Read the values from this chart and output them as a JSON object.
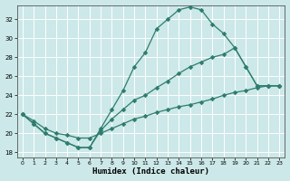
{
  "xlabel": "Humidex (Indice chaleur)",
  "bg_color": "#cce8e8",
  "grid_color": "#b0d8d8",
  "line_color": "#2e7d6e",
  "xlim": [
    -0.5,
    23.5
  ],
  "ylim": [
    17.5,
    33.5
  ],
  "xticks": [
    0,
    1,
    2,
    3,
    4,
    5,
    6,
    7,
    8,
    9,
    10,
    11,
    12,
    13,
    14,
    15,
    16,
    17,
    18,
    19,
    20,
    21,
    22,
    23
  ],
  "yticks": [
    18,
    20,
    22,
    24,
    26,
    28,
    30,
    32
  ],
  "line1_x": [
    0,
    1,
    2,
    3,
    4,
    5,
    6,
    7,
    8,
    9,
    10,
    11,
    12,
    13,
    14,
    15,
    16,
    17,
    18,
    19,
    20,
    21,
    22,
    23
  ],
  "line1_y": [
    22.0,
    21.0,
    20.0,
    19.5,
    19.0,
    18.5,
    18.5,
    20.5,
    22.5,
    24.5,
    27.0,
    28.5,
    31.0,
    32.0,
    33.0,
    33.3,
    33.0,
    31.5,
    30.5,
    29.0,
    27.0,
    25.0,
    25.0,
    25.0
  ],
  "line2_x": [
    0,
    1,
    2,
    3,
    4,
    5,
    6,
    7,
    8,
    9,
    10,
    11,
    12,
    13,
    14,
    15,
    16,
    17,
    18,
    19,
    20,
    21,
    22,
    23
  ],
  "line2_y": [
    22.0,
    21.0,
    20.0,
    19.5,
    19.0,
    18.5,
    18.5,
    20.3,
    21.5,
    22.5,
    23.5,
    24.0,
    24.8,
    25.5,
    26.3,
    27.0,
    27.5,
    28.0,
    28.3,
    29.0,
    27.0,
    25.0,
    25.0,
    25.0
  ],
  "line3_x": [
    0,
    1,
    2,
    3,
    4,
    5,
    6,
    7,
    8,
    9,
    10,
    11,
    12,
    13,
    14,
    15,
    16,
    17,
    18,
    19,
    20,
    21,
    22,
    23
  ],
  "line3_y": [
    22.0,
    21.3,
    20.5,
    20.0,
    19.8,
    19.5,
    19.5,
    20.0,
    20.5,
    21.0,
    21.5,
    21.8,
    22.2,
    22.5,
    22.8,
    23.0,
    23.3,
    23.6,
    24.0,
    24.3,
    24.5,
    24.8,
    25.0,
    25.0
  ]
}
